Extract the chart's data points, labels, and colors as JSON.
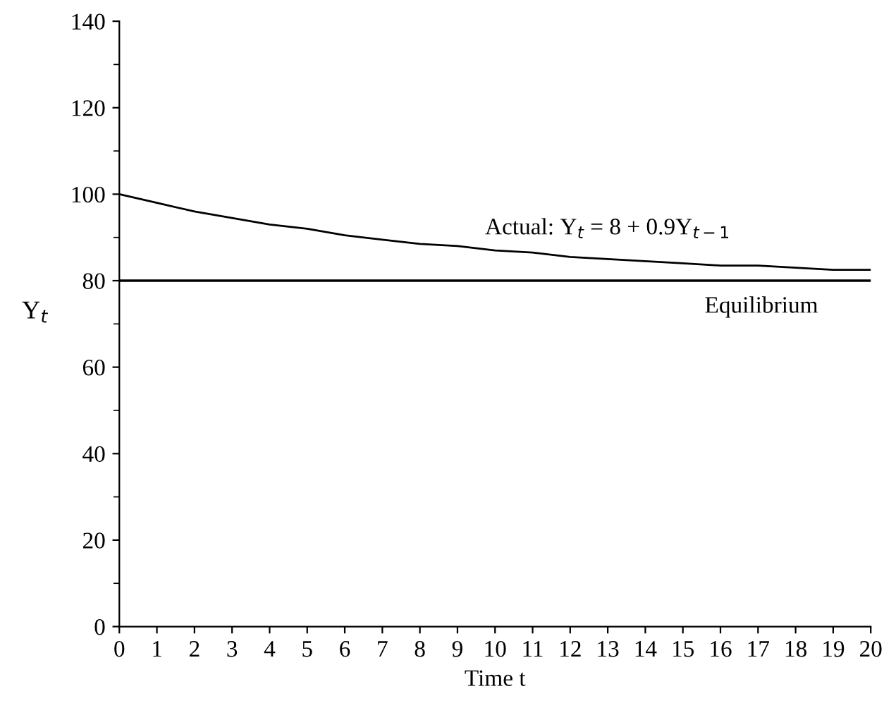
{
  "chart_data": {
    "type": "line",
    "xlabel": "Time t",
    "ylabel": "Y$_{t}$",
    "x": [
      0,
      1,
      2,
      3,
      4,
      5,
      6,
      7,
      8,
      9,
      10,
      11,
      12,
      13,
      14,
      15,
      16,
      17,
      18,
      19,
      20
    ],
    "series": [
      {
        "color": "#000000",
        "values": [
          100,
          98,
          96,
          94.5,
          93,
          92,
          90.5,
          89.5,
          88.5,
          88,
          87,
          86.5,
          85.5,
          85,
          84.5,
          84,
          83.5,
          83.5,
          83,
          82.5,
          82.5
        ]
      }
    ],
    "xlim": [
      0,
      20
    ],
    "xticks": [
      0,
      1,
      2,
      3,
      4,
      5,
      6,
      7,
      8,
      9,
      10,
      11,
      12,
      13,
      14,
      15,
      16,
      17,
      18,
      19,
      20
    ],
    "ylim": [
      0,
      140
    ],
    "yticks": [
      0,
      20,
      40,
      60,
      80,
      100,
      120,
      140
    ],
    "ref_lines": [
      {
        "axis": "y",
        "value": 80,
        "label": "Equilibrium",
        "color": "#000000",
        "line_style": "solid"
      }
    ],
    "annotations": [
      {
        "text": "Actual: Y$_{t}$ = 8 + 0.9Y$_{t−1}$",
        "x": 13,
        "y": 85
      }
    ],
    "grid": false,
    "legend": false,
    "marker": "none",
    "line_style": "solid"
  }
}
